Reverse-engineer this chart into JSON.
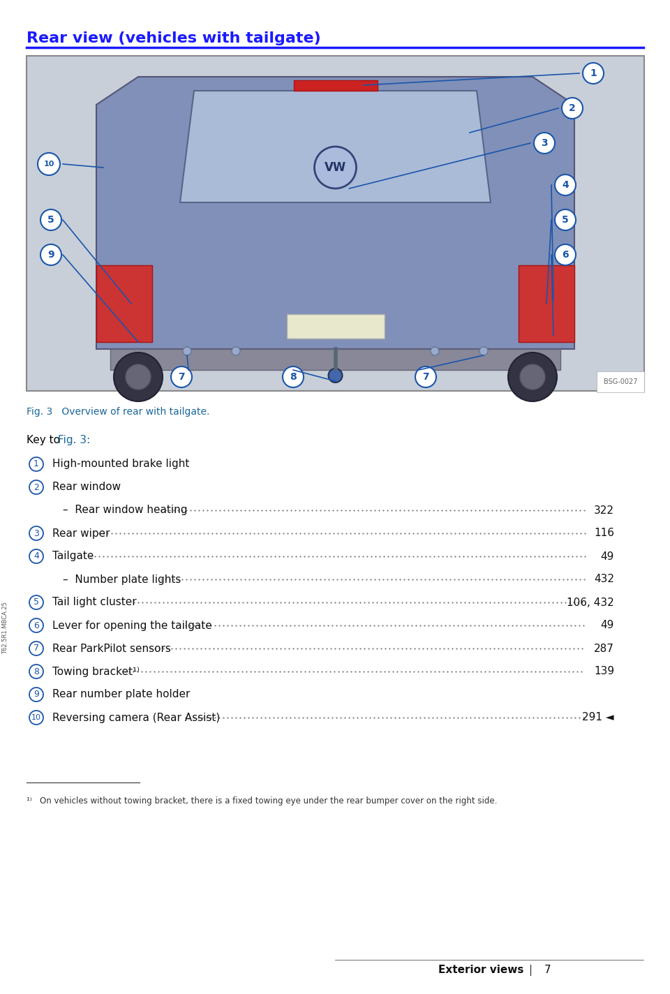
{
  "title": "Rear view (vehicles with tailgate)",
  "title_color": "#1a1aff",
  "title_fontsize": 16,
  "title_bold": true,
  "fig_caption": "Fig. 3   Overview of rear with tailgate.",
  "fig_caption_color": "#1a6699",
  "key_intro": "Key to ",
  "key_fig_ref": "Fig. 3",
  "key_fig_ref_color": "#1a6699",
  "key_intro_color": "#000000",
  "background_color": "#ffffff",
  "page_bg": "#f5f5f0",
  "items": [
    {
      "num": "1",
      "label": "High-mounted brake light",
      "dots": false,
      "page": ""
    },
    {
      "num": "2",
      "label": "Rear window",
      "dots": false,
      "page": ""
    },
    {
      "num": "",
      "label": "–  Rear window heating",
      "dots": true,
      "page": "322",
      "indent": true
    },
    {
      "num": "3",
      "label": "Rear wiper",
      "dots": true,
      "page": "116"
    },
    {
      "num": "4",
      "label": "Tailgate",
      "dots": true,
      "page": "49"
    },
    {
      "num": "",
      "label": "–  Number plate lights",
      "dots": true,
      "page": "432",
      "indent": true
    },
    {
      "num": "5",
      "label": "Tail light cluster",
      "dots": true,
      "page": "106, 432"
    },
    {
      "num": "6",
      "label": "Lever for opening the tailgate",
      "dots": true,
      "page": "49"
    },
    {
      "num": "7",
      "label": "Rear ParkPilot sensors",
      "dots": true,
      "page": "287"
    },
    {
      "num": "8",
      "label": "Towing bracket¹⁾",
      "dots": true,
      "page": "139"
    },
    {
      "num": "9",
      "label": "Rear number plate holder",
      "dots": false,
      "page": ""
    },
    {
      "num": "10",
      "label": "Reversing camera (Rear Assist)",
      "dots": true,
      "page": "291 ◄"
    }
  ],
  "footnote_line": true,
  "footnote": "¹⁾   On vehicles without towing bracket, there is a fixed towing eye under the rear bumper cover on the right side.",
  "footer_left": "",
  "footer_right_bold": "Exterior views",
  "footer_page": "7",
  "sidebar_text": "T62.5R1.MBCA.25",
  "circle_color": "#1a55aa",
  "circle_text_color": "#1a55aa",
  "line_color": "#1a1aff",
  "dot_color": "#555555",
  "image_bg": "#d0d8e8",
  "image_border": "#888888"
}
